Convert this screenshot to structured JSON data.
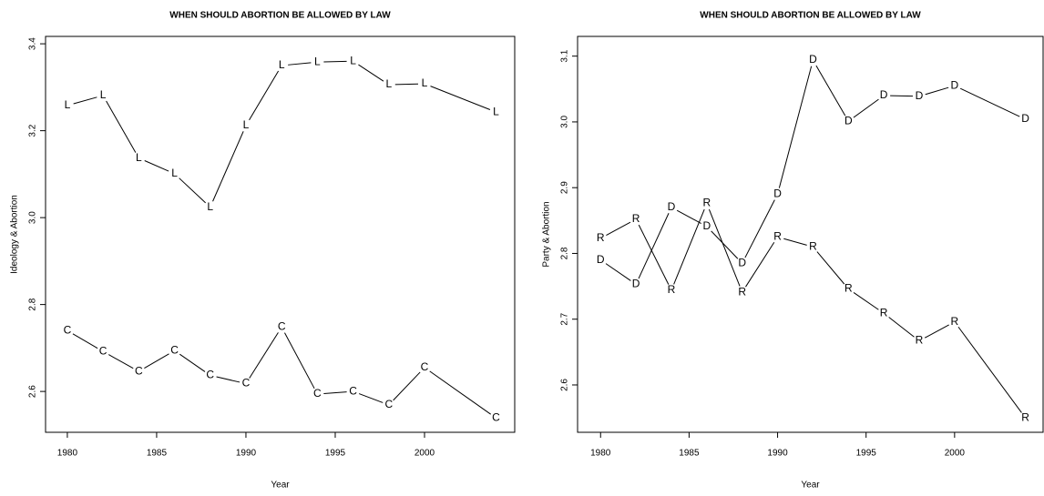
{
  "chart_data": [
    {
      "type": "line",
      "title": "WHEN SHOULD ABORTION BE ALLOWED BY LAW",
      "x_label": "Year",
      "y_label": "Ideology & Abortion",
      "x": [
        1980,
        1982,
        1984,
        1986,
        1988,
        1990,
        1992,
        1994,
        1996,
        1998,
        2000,
        2004
      ],
      "series": [
        {
          "name": "L",
          "color": "#000000",
          "values": [
            3.258,
            3.281,
            3.137,
            3.101,
            3.024,
            3.212,
            3.35,
            3.358,
            3.36,
            3.306,
            3.308,
            3.243
          ]
        },
        {
          "name": "C",
          "color": "#000000",
          "values": [
            2.74,
            2.692,
            2.646,
            2.694,
            2.637,
            2.618,
            2.748,
            2.594,
            2.6,
            2.569,
            2.655,
            2.539
          ]
        }
      ],
      "xlim": [
        1978.78,
        2005.05
      ],
      "xticks": [
        1980,
        1985,
        1990,
        1995,
        2000
      ],
      "ylim": [
        2.506,
        3.417
      ],
      "yticks": [
        2.6,
        2.8,
        {
          "value": 3,
          "label": "3.0"
        },
        3.2,
        3.4
      ]
    },
    {
      "type": "line",
      "title": "WHEN SHOULD ABORTION BE ALLOWED BY LAW",
      "x_label": "Year",
      "y_label": "Party & Abortion",
      "x": [
        1980,
        1982,
        1984,
        1986,
        1988,
        1990,
        1992,
        1994,
        1996,
        1998,
        2000,
        2004
      ],
      "series": [
        {
          "name": "D",
          "color": "#000000",
          "values": [
            2.79,
            2.753,
            2.87,
            2.841,
            2.785,
            2.89,
            3.094,
            3.001,
            3.04,
            3.039,
            3.055,
            3.004
          ]
        },
        {
          "name": "R",
          "color": "#000000",
          "values": [
            2.823,
            2.852,
            2.744,
            2.876,
            2.741,
            2.825,
            2.81,
            2.746,
            2.709,
            2.667,
            2.696,
            2.55
          ]
        }
      ],
      "xlim": [
        1978.7,
        2005.0
      ],
      "xticks": [
        1980,
        1985,
        1990,
        1995,
        2000
      ],
      "ylim": [
        2.528,
        3.13
      ],
      "yticks": [
        2.6,
        2.7,
        2.8,
        2.9,
        {
          "value": 3,
          "label": "3.0"
        },
        3.1
      ]
    }
  ]
}
